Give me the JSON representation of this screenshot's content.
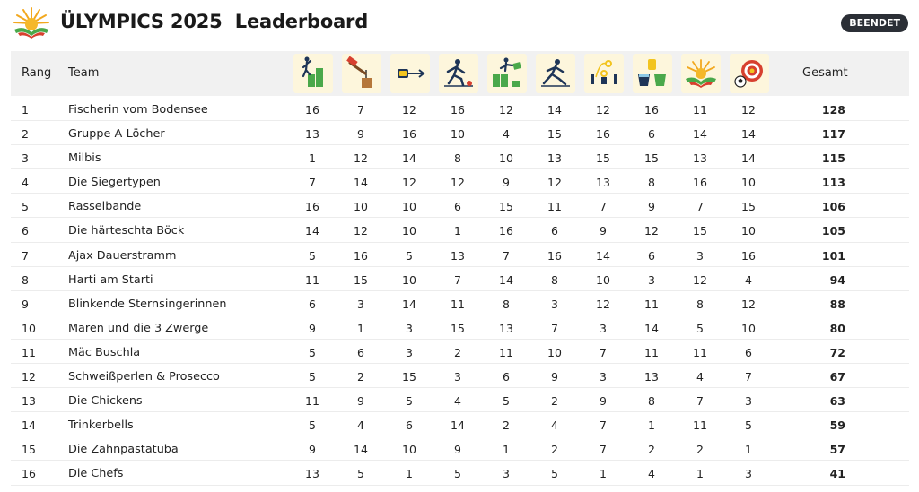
{
  "header": {
    "title": "ÜLYMPICS 2025  Leaderboard",
    "status": "BEENDET",
    "logo_icon": "sunrise-hands-logo-icon"
  },
  "colors": {
    "header_bg": "#f1f1f1",
    "icon_bg": "#fdf6dc",
    "badge_bg": "#2b2f36",
    "accent_green": "#4aa84a",
    "accent_navy": "#1e3557",
    "accent_yellow": "#f2c41f",
    "accent_red": "#d7402f"
  },
  "table": {
    "headers": {
      "rank": "Rang",
      "team": "Team",
      "total": "Gesamt"
    },
    "disciplines": [
      {
        "icon": "person-climbing-crates-icon"
      },
      {
        "icon": "hammer-nail-icon"
      },
      {
        "icon": "tape-measure-arrow-icon"
      },
      {
        "icon": "bowling-player-icon"
      },
      {
        "icon": "person-stacking-boxes-icon"
      },
      {
        "icon": "player-sliding-icon"
      },
      {
        "icon": "ring-toss-icon"
      },
      {
        "icon": "sponge-buckets-icon"
      },
      {
        "icon": "sunrise-hands-icon"
      },
      {
        "icon": "ball-target-icon"
      }
    ],
    "rows": [
      {
        "rank": "1",
        "team": "Fischerin vom Bodensee",
        "scores": [
          "16",
          "7",
          "12",
          "16",
          "12",
          "14",
          "12",
          "16",
          "11",
          "12"
        ],
        "total": "128"
      },
      {
        "rank": "2",
        "team": "Gruppe A-Löcher",
        "scores": [
          "13",
          "9",
          "16",
          "10",
          "4",
          "15",
          "16",
          "6",
          "14",
          "14"
        ],
        "total": "117"
      },
      {
        "rank": "3",
        "team": "Milbis",
        "scores": [
          "1",
          "12",
          "14",
          "8",
          "10",
          "13",
          "15",
          "15",
          "13",
          "14"
        ],
        "total": "115"
      },
      {
        "rank": "4",
        "team": "Die Siegertypen",
        "scores": [
          "7",
          "14",
          "12",
          "12",
          "9",
          "12",
          "13",
          "8",
          "16",
          "10"
        ],
        "total": "113"
      },
      {
        "rank": "5",
        "team": "Rasselbande",
        "scores": [
          "16",
          "10",
          "10",
          "6",
          "15",
          "11",
          "7",
          "9",
          "7",
          "15"
        ],
        "total": "106"
      },
      {
        "rank": "6",
        "team": "Die härteschta Böck",
        "scores": [
          "14",
          "12",
          "10",
          "1",
          "16",
          "6",
          "9",
          "12",
          "15",
          "10"
        ],
        "total": "105"
      },
      {
        "rank": "7",
        "team": "Ajax Dauerstramm",
        "scores": [
          "5",
          "16",
          "5",
          "13",
          "7",
          "16",
          "14",
          "6",
          "3",
          "16"
        ],
        "total": "101"
      },
      {
        "rank": "8",
        "team": "Harti am Starti",
        "scores": [
          "11",
          "15",
          "10",
          "7",
          "14",
          "8",
          "10",
          "3",
          "12",
          "4"
        ],
        "total": "94"
      },
      {
        "rank": "9",
        "team": "Blinkende Sternsingerinnen",
        "scores": [
          "6",
          "3",
          "14",
          "11",
          "8",
          "3",
          "12",
          "11",
          "8",
          "12"
        ],
        "total": "88"
      },
      {
        "rank": "10",
        "team": "Maren und die 3 Zwerge",
        "scores": [
          "9",
          "1",
          "3",
          "15",
          "13",
          "7",
          "3",
          "14",
          "5",
          "10"
        ],
        "total": "80"
      },
      {
        "rank": "11",
        "team": "Mäc Buschla",
        "scores": [
          "5",
          "6",
          "3",
          "2",
          "11",
          "10",
          "7",
          "11",
          "11",
          "6"
        ],
        "total": "72"
      },
      {
        "rank": "12",
        "team": "Schweißperlen & Prosecco",
        "scores": [
          "5",
          "2",
          "15",
          "3",
          "6",
          "9",
          "3",
          "13",
          "4",
          "7"
        ],
        "total": "67"
      },
      {
        "rank": "13",
        "team": "Die Chickens",
        "scores": [
          "11",
          "9",
          "5",
          "4",
          "5",
          "2",
          "9",
          "8",
          "7",
          "3"
        ],
        "total": "63"
      },
      {
        "rank": "14",
        "team": "Trinkerbells",
        "scores": [
          "5",
          "4",
          "6",
          "14",
          "2",
          "4",
          "7",
          "1",
          "11",
          "5"
        ],
        "total": "59"
      },
      {
        "rank": "15",
        "team": "Die Zahnpastatuba",
        "scores": [
          "9",
          "14",
          "10",
          "9",
          "1",
          "2",
          "7",
          "2",
          "2",
          "1"
        ],
        "total": "57"
      },
      {
        "rank": "16",
        "team": "Die Chefs",
        "scores": [
          "13",
          "5",
          "1",
          "5",
          "3",
          "5",
          "1",
          "4",
          "1",
          "3"
        ],
        "total": "41"
      }
    ]
  }
}
